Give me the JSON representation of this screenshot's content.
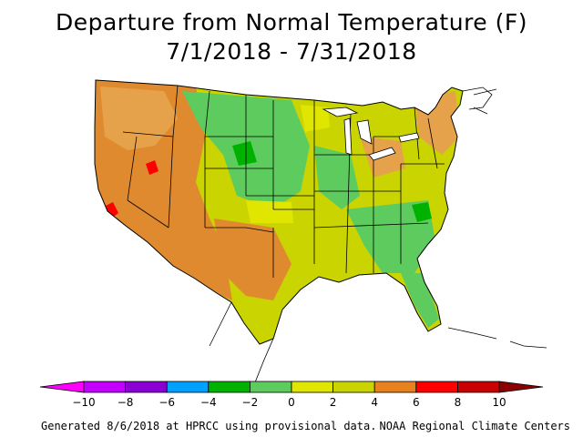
{
  "title": {
    "line1": "Departure from Normal Temperature (F)",
    "line2": "7/1/2018 - 7/31/2018"
  },
  "legend": {
    "min": -10,
    "max": 10,
    "tick_labels": [
      "-10",
      "-8",
      "-6",
      "-4",
      "-2",
      "0",
      "2",
      "4",
      "6",
      "8",
      "10"
    ],
    "bins": [
      {
        "from": -10,
        "to": -8,
        "color": "#c300ff"
      },
      {
        "from": -8,
        "to": -6,
        "color": "#8c00d6"
      },
      {
        "from": -6,
        "to": -4,
        "color": "#00a0ff"
      },
      {
        "from": -4,
        "to": -2,
        "color": "#00b200"
      },
      {
        "from": -2,
        "to": 0,
        "color": "#5ecb5e"
      },
      {
        "from": 0,
        "to": 2,
        "color": "#e1e600"
      },
      {
        "from": 2,
        "to": 4,
        "color": "#c9d400"
      },
      {
        "from": 4,
        "to": 6,
        "color": "#e8821e"
      },
      {
        "from": 6,
        "to": 8,
        "color": "#ff0000"
      },
      {
        "from": 8,
        "to": 10,
        "color": "#c80000"
      }
    ],
    "under_color": "#ff00ff",
    "over_color": "#8b0000"
  },
  "map_colors": {
    "warm_orange": "#e08a30",
    "light_orange": "#e6a24a",
    "yellow": "#e1e600",
    "yellow_green": "#c9d400",
    "green": "#5ecb5e",
    "dark_green": "#00b200",
    "red": "#ff0000",
    "outline": "#000000"
  },
  "footer": {
    "left": "Generated 8/6/2018 at HPRCC using provisional data.",
    "right": "NOAA Regional Climate Centers"
  }
}
